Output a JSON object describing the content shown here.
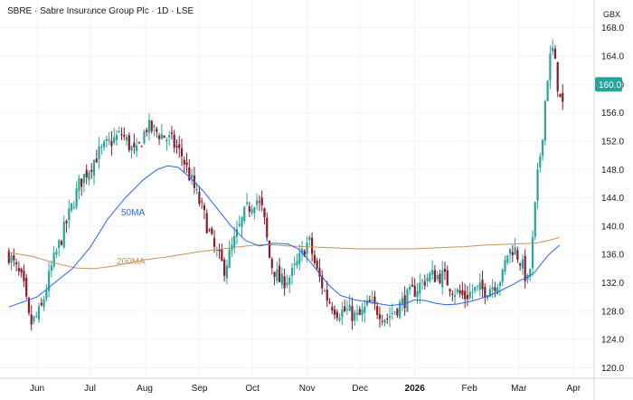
{
  "header": {
    "title": "SBRE · Sabre Insurance Group Plc · 1D · LSE"
  },
  "chart_data": {
    "type": "candlestick",
    "currency": "GBX",
    "last_price_label": "160.0",
    "colors": {
      "up": "#26a69a",
      "down": "#8b1a2b",
      "ma50": "#2962ff",
      "ma200": "#c8945a",
      "price_tag": "#26a69a"
    },
    "ylim": [
      119,
      169.5
    ],
    "y_ticks": [
      120.0,
      124.0,
      128.0,
      132.0,
      136.0,
      140.0,
      144.0,
      148.0,
      152.0,
      156.0,
      160.0,
      164.0,
      168.0
    ],
    "y_tick_labels": [
      "120.0",
      "124.0",
      "128.0",
      "132.0",
      "136.0",
      "140.0",
      "144.0",
      "148.0",
      "152.0",
      "156.0",
      "160.0",
      "164.0",
      "168.0"
    ],
    "x_labels": [
      {
        "label": "Jun",
        "day": 10,
        "bold": false
      },
      {
        "label": "Jul",
        "day": 40,
        "bold": false
      },
      {
        "label": "Aug",
        "day": 71,
        "bold": false
      },
      {
        "label": "Sep",
        "day": 102,
        "bold": false
      },
      {
        "label": "Oct",
        "day": 132,
        "bold": false
      },
      {
        "label": "Nov",
        "day": 163,
        "bold": false
      },
      {
        "label": "Dec",
        "day": 193,
        "bold": false
      },
      {
        "label": "2026",
        "day": 224,
        "bold": true
      },
      {
        "label": "Feb",
        "day": 255,
        "bold": false
      },
      {
        "label": "Mar",
        "day": 283,
        "bold": false
      },
      {
        "label": "Apr",
        "day": 314,
        "bold": false
      }
    ],
    "price_path": [
      [
        -6,
        136
      ],
      [
        2,
        132
      ],
      [
        6,
        126
      ],
      [
        12,
        128
      ],
      [
        18,
        134
      ],
      [
        26,
        140
      ],
      [
        34,
        146
      ],
      [
        44,
        150
      ],
      [
        52,
        152
      ],
      [
        58,
        153
      ],
      [
        66,
        150
      ],
      [
        72,
        154
      ],
      [
        80,
        153
      ],
      [
        86,
        152
      ],
      [
        92,
        150
      ],
      [
        98,
        146
      ],
      [
        104,
        142
      ],
      [
        110,
        137
      ],
      [
        116,
        134
      ],
      [
        122,
        138
      ],
      [
        128,
        142
      ],
      [
        134,
        144
      ],
      [
        138,
        142
      ],
      [
        142,
        135
      ],
      [
        148,
        132
      ],
      [
        154,
        133
      ],
      [
        160,
        136
      ],
      [
        164,
        138
      ],
      [
        168,
        134
      ],
      [
        174,
        130
      ],
      [
        180,
        128
      ],
      [
        186,
        128
      ],
      [
        192,
        127
      ],
      [
        198,
        129
      ],
      [
        204,
        128
      ],
      [
        208,
        127
      ],
      [
        212,
        128
      ],
      [
        216,
        129
      ],
      [
        220,
        130
      ],
      [
        224,
        131
      ],
      [
        232,
        133
      ],
      [
        240,
        133
      ],
      [
        246,
        131
      ],
      [
        252,
        130
      ],
      [
        258,
        131
      ],
      [
        264,
        131
      ],
      [
        270,
        132
      ],
      [
        274,
        133
      ],
      [
        276,
        136
      ],
      [
        280,
        137
      ],
      [
        284,
        135
      ],
      [
        288,
        132
      ],
      [
        290,
        135
      ],
      [
        292,
        142
      ],
      [
        294,
        148
      ],
      [
        296,
        152
      ],
      [
        298,
        158
      ],
      [
        300,
        163
      ],
      [
        302,
        165
      ],
      [
        304,
        162
      ],
      [
        306,
        158
      ],
      [
        308,
        157
      ]
    ],
    "ma50": [
      [
        -6,
        128.6
      ],
      [
        10,
        130
      ],
      [
        20,
        132
      ],
      [
        30,
        134
      ],
      [
        40,
        137
      ],
      [
        50,
        141
      ],
      [
        60,
        144
      ],
      [
        70,
        146.5
      ],
      [
        78,
        148
      ],
      [
        84,
        148.5
      ],
      [
        90,
        148.3
      ],
      [
        96,
        147
      ],
      [
        104,
        145
      ],
      [
        112,
        142.5
      ],
      [
        120,
        140
      ],
      [
        128,
        138
      ],
      [
        136,
        137.2
      ],
      [
        144,
        137.6
      ],
      [
        152,
        137.5
      ],
      [
        158,
        136.8
      ],
      [
        164,
        135.2
      ],
      [
        170,
        133.3
      ],
      [
        176,
        131.5
      ],
      [
        182,
        130.2
      ],
      [
        190,
        129.6
      ],
      [
        200,
        129.2
      ],
      [
        210,
        128.8
      ],
      [
        218,
        129
      ],
      [
        224,
        129.6
      ],
      [
        230,
        129.5
      ],
      [
        236,
        129.1
      ],
      [
        242,
        128.9
      ],
      [
        248,
        129
      ],
      [
        256,
        129.4
      ],
      [
        264,
        130
      ],
      [
        270,
        130.6
      ],
      [
        276,
        131.3
      ],
      [
        280,
        131.8
      ],
      [
        284,
        132.4
      ],
      [
        288,
        132.8
      ],
      [
        292,
        133.5
      ],
      [
        296,
        134.8
      ],
      [
        300,
        136
      ],
      [
        304,
        136.9
      ],
      [
        306,
        137.3
      ]
    ],
    "ma200": [
      [
        -6,
        136.3
      ],
      [
        8,
        135.7
      ],
      [
        20,
        134.8
      ],
      [
        32,
        134.1
      ],
      [
        42,
        134
      ],
      [
        52,
        134.3
      ],
      [
        62,
        134.8
      ],
      [
        72,
        135.3
      ],
      [
        82,
        135.6
      ],
      [
        92,
        136
      ],
      [
        102,
        136.4
      ],
      [
        112,
        136.7
      ],
      [
        122,
        137
      ],
      [
        132,
        137.3
      ],
      [
        142,
        137.4
      ],
      [
        152,
        137.2
      ],
      [
        162,
        137.1
      ],
      [
        172,
        137
      ],
      [
        182,
        136.9
      ],
      [
        192,
        136.8
      ],
      [
        202,
        136.8
      ],
      [
        212,
        136.8
      ],
      [
        222,
        136.8
      ],
      [
        232,
        136.9
      ],
      [
        242,
        137
      ],
      [
        252,
        137.1
      ],
      [
        262,
        137.3
      ],
      [
        272,
        137.4
      ],
      [
        282,
        137.5
      ],
      [
        292,
        137.6
      ],
      [
        300,
        138
      ],
      [
        306,
        138.4
      ]
    ],
    "ma_labels": [
      {
        "text": "50MA",
        "series": "ma50"
      },
      {
        "text": "200MA",
        "series": "ma200"
      }
    ]
  }
}
